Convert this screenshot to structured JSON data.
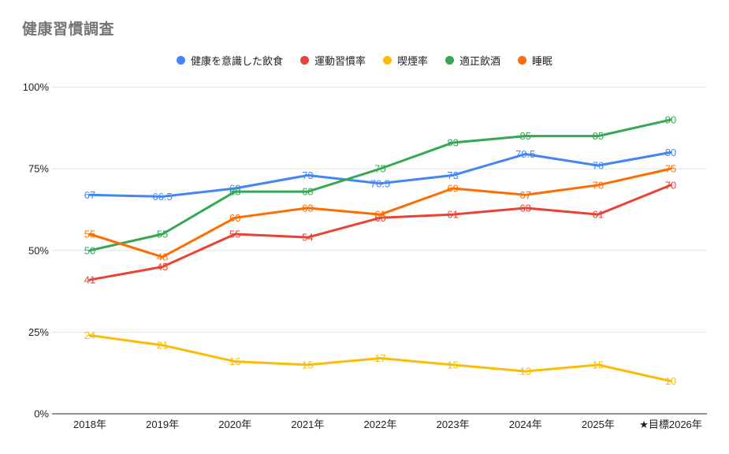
{
  "title": "健康習慣調査",
  "chart_data": {
    "type": "line",
    "title": "健康習慣調査",
    "categories": [
      "2018年",
      "2019年",
      "2020年",
      "2021年",
      "2022年",
      "2023年",
      "2024年",
      "2025年",
      "★目標2026年"
    ],
    "series": [
      {
        "name": "健康を意識した飲食",
        "color": "#4285f4",
        "values": [
          67,
          66.5,
          69,
          73,
          70.5,
          73,
          79.5,
          76,
          80
        ]
      },
      {
        "name": "運動習慣率",
        "color": "#ea4335",
        "values": [
          41,
          45,
          55,
          54,
          60,
          61,
          63,
          61,
          70
        ]
      },
      {
        "name": "喫煙率",
        "color": "#fbbc04",
        "values": [
          24,
          21,
          16,
          15,
          17,
          15,
          13,
          15,
          10
        ]
      },
      {
        "name": "適正飲酒",
        "color": "#34a853",
        "values": [
          50,
          55,
          68,
          68,
          75,
          83,
          85,
          85,
          90
        ]
      },
      {
        "name": "睡眠",
        "color": "#ff6d01",
        "values": [
          55,
          48,
          60,
          63,
          61,
          69,
          67,
          70,
          75
        ]
      }
    ],
    "xlabel": "",
    "ylabel": "",
    "ylim": [
      0,
      100
    ],
    "yticks": [
      {
        "value": 0,
        "label": "0%"
      },
      {
        "value": 25,
        "label": "25%"
      },
      {
        "value": 50,
        "label": "50%"
      },
      {
        "value": 75,
        "label": "75%"
      },
      {
        "value": 100,
        "label": "100%"
      }
    ],
    "grid": true,
    "legend_position": "top",
    "data_labels": true,
    "colors": {
      "background": "#ffffff",
      "gridline": "#e2e2e2",
      "axis_line": "#212121",
      "tick_text": "#202124",
      "title_text": "#757575"
    }
  }
}
